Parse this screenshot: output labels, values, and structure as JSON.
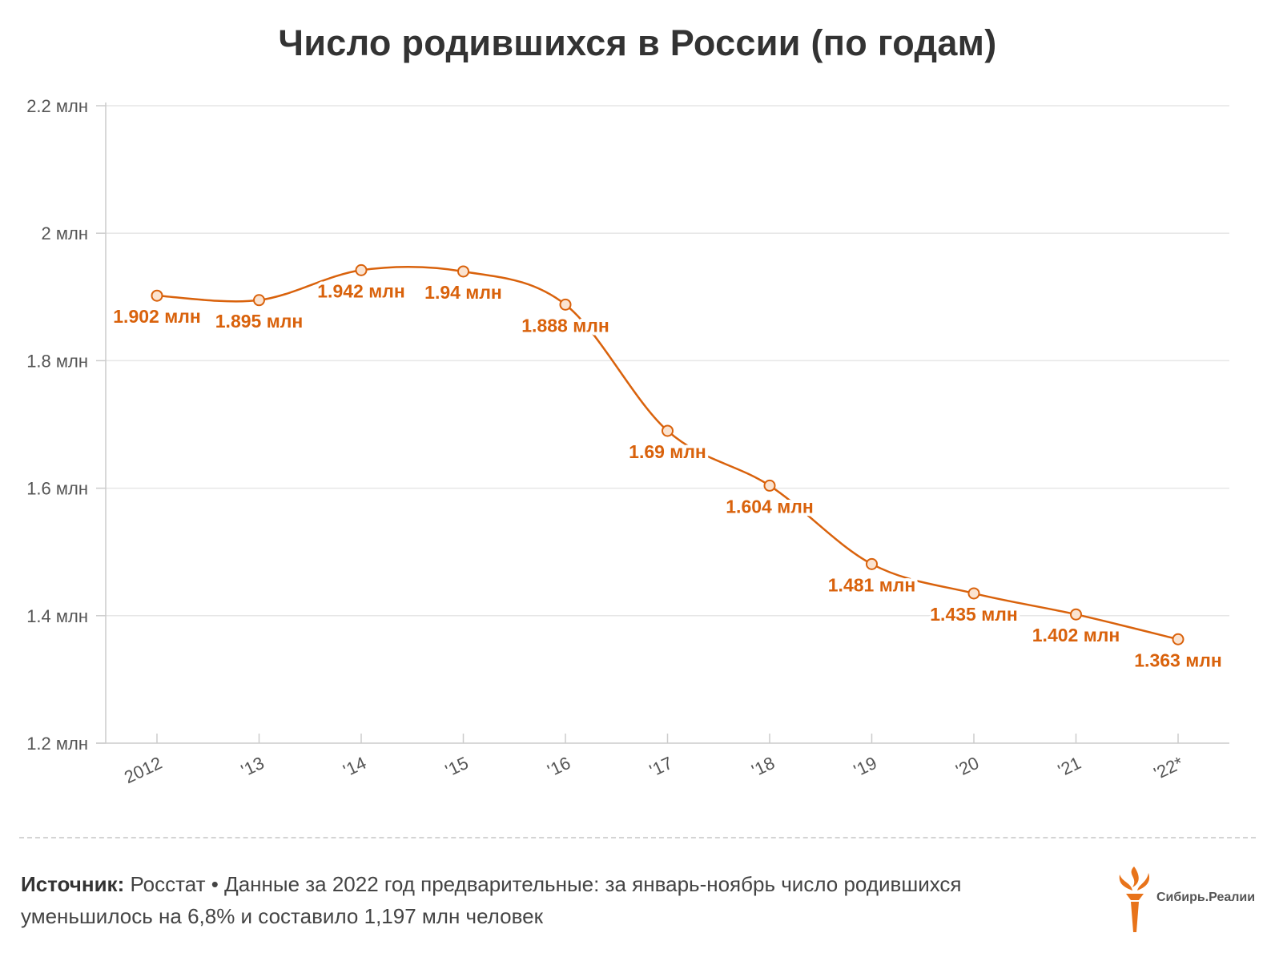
{
  "title": "Число родившихся в России (по годам)",
  "colors": {
    "line": "#d9620c",
    "grid": "#e6e6e6",
    "marker_fill": "#fbe3d0"
  },
  "chart_data": {
    "type": "line",
    "title": "Число родившихся в России (по годам)",
    "categories": [
      "2012",
      "'13",
      "'14",
      "'15",
      "'16",
      "'17",
      "'18",
      "'19",
      "'20",
      "'21",
      "'22*"
    ],
    "series": [
      {
        "name": "Число родившихся",
        "values": [
          1.902,
          1.895,
          1.942,
          1.94,
          1.888,
          1.69,
          1.604,
          1.481,
          1.435,
          1.402,
          1.363
        ]
      }
    ],
    "data_labels": [
      "1.902 млн",
      "1.895 млн",
      "1.942 млн",
      "1.94 млн",
      "1.888 млн",
      "1.69 млн",
      "1.604 млн",
      "1.481 млн",
      "1.435 млн",
      "1.402 млн",
      "1.363 млн"
    ],
    "ylim": [
      1.2,
      2.2
    ],
    "yticks": [
      1.2,
      1.4,
      1.6,
      1.8,
      2.0,
      2.2
    ],
    "ytick_labels": [
      "1.2 млн",
      "1.4 млн",
      "1.6 млн",
      "1.8 млн",
      "2 млн",
      "2.2 млн"
    ],
    "xlabel": "",
    "ylabel": "",
    "grid": true
  },
  "footer": {
    "source_label": "Источник:",
    "source_text": "Росстат • Данные за 2022 год предварительные: за январь-ноябрь число родившихся уменьшилось на 6,8% и составило 1,197 млн человек"
  },
  "logo": {
    "text": "Сибирь.Реалии"
  }
}
